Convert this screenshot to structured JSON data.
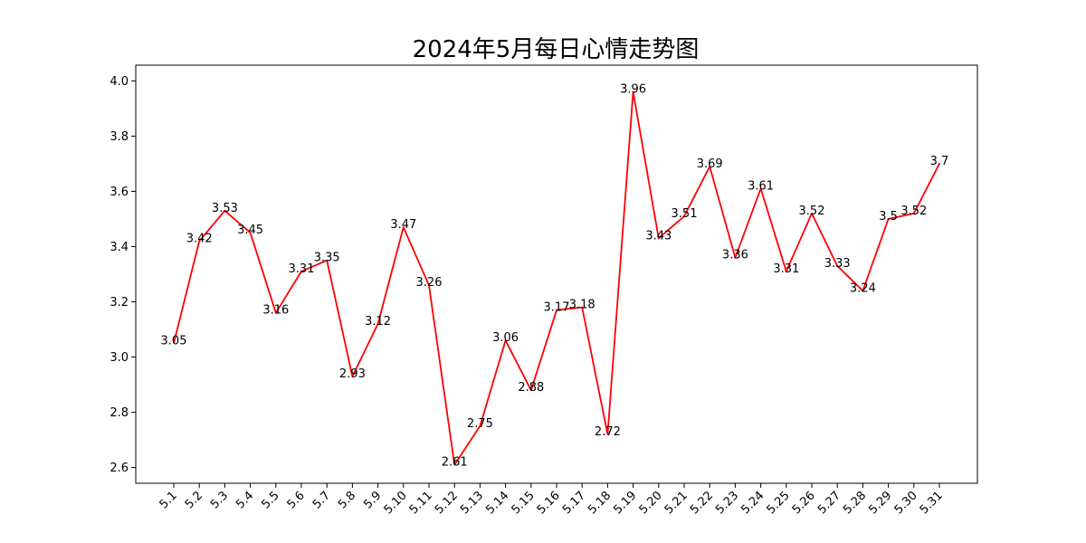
{
  "chart_data": {
    "type": "line",
    "title": "2024年5月每日心情走势图",
    "xlabel": "",
    "ylabel": "",
    "categories": [
      "5.1",
      "5.2",
      "5.3",
      "5.4",
      "5.5",
      "5.6",
      "5.7",
      "5.8",
      "5.9",
      "5.10",
      "5.11",
      "5.12",
      "5.13",
      "5.14",
      "5.15",
      "5.16",
      "5.17",
      "5.18",
      "5.19",
      "5.20",
      "5.21",
      "5.22",
      "5.23",
      "5.24",
      "5.25",
      "5.26",
      "5.27",
      "5.28",
      "5.29",
      "5.30",
      "5.31"
    ],
    "series": [
      {
        "values": [
          3.05,
          3.42,
          3.53,
          3.45,
          3.16,
          3.31,
          3.35,
          2.93,
          3.12,
          3.47,
          3.26,
          2.61,
          2.75,
          3.06,
          2.88,
          3.17,
          3.18,
          2.72,
          3.96,
          3.43,
          3.51,
          3.69,
          3.36,
          3.61,
          3.31,
          3.52,
          3.33,
          3.24,
          3.5,
          3.52,
          3.7
        ],
        "data_labels": [
          "3.05",
          "3.42",
          "3.53",
          "3.45",
          "3.16",
          "3.31",
          "3.35",
          "2.93",
          "3.12",
          "3.47",
          "3.26",
          "2.61",
          "2.75",
          "3.06",
          "2.88",
          "3.17",
          "3.18",
          "2.72",
          "3.96",
          "3.43",
          "3.51",
          "3.69",
          "3.36",
          "3.61",
          "3.31",
          "3.52",
          "3.33",
          "3.24",
          "3.5",
          "3.52",
          "3.7"
        ],
        "color": "#ff0000"
      }
    ],
    "yticks": [
      2.6,
      2.8,
      3.0,
      3.2,
      3.4,
      3.6,
      3.8,
      4.0
    ],
    "ytick_labels": [
      "2.6",
      "2.8",
      "3.0",
      "3.2",
      "3.4",
      "3.6",
      "3.8",
      "4.0"
    ],
    "ylim": [
      2.543,
      4.057
    ],
    "grid": false,
    "legend": false,
    "x_tick_rotation": 45
  }
}
